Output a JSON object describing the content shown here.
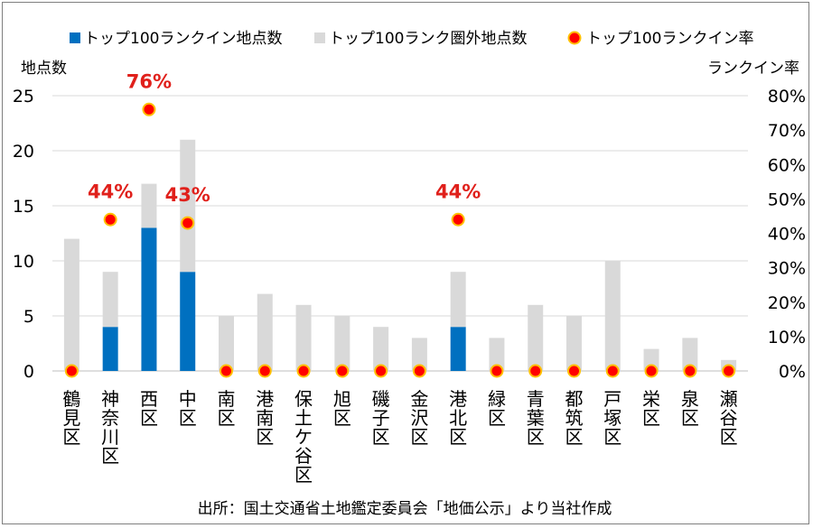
{
  "chart_data": {
    "type": "bar",
    "stacked": true,
    "categories": [
      "鶴見区",
      "神奈川区",
      "西区",
      "中区",
      "南区",
      "港南区",
      "保土ケ谷区",
      "旭区",
      "磯子区",
      "金沢区",
      "港北区",
      "緑区",
      "青葉区",
      "都筑区",
      "戸塚区",
      "栄区",
      "泉区",
      "瀬谷区"
    ],
    "series": [
      {
        "name": "トップ100ランクイン地点数",
        "color": "#0070C0",
        "axis": "left",
        "kind": "bar",
        "values": [
          0,
          4,
          13,
          9,
          0,
          0,
          0,
          0,
          0,
          0,
          4,
          0,
          0,
          0,
          0,
          0,
          0,
          0
        ]
      },
      {
        "name": "トップ100ランク圏外地点数",
        "color": "#D9D9D9",
        "axis": "left",
        "kind": "bar",
        "values": [
          12,
          5,
          4,
          12,
          5,
          7,
          6,
          5,
          4,
          3,
          5,
          3,
          6,
          5,
          10,
          2,
          3,
          1
        ]
      },
      {
        "name": "トップ100ランクイン率",
        "color": "#FF0000",
        "axis": "right",
        "kind": "point",
        "values": [
          0,
          44,
          76,
          43,
          0,
          0,
          0,
          0,
          0,
          0,
          44,
          0,
          0,
          0,
          0,
          0,
          0,
          0
        ]
      }
    ],
    "rate_labels": [
      "",
      "44%",
      "76%",
      "43%",
      "",
      "",
      "",
      "",
      "",
      "",
      "44%",
      "",
      "",
      "",
      "",
      "",
      "",
      ""
    ],
    "ylabel_left": "地点数",
    "ylabel_right": "ランクイン率",
    "ylim_left": [
      0,
      25
    ],
    "yticks_left": [
      "0",
      "5",
      "10",
      "15",
      "20",
      "25"
    ],
    "ylim_right": [
      0,
      80
    ],
    "yticks_right": [
      "0%",
      "10%",
      "20%",
      "30%",
      "40%",
      "50%",
      "60%",
      "70%",
      "80%"
    ],
    "source": "出所：国土交通省土地鑑定委員会「地価公示」より当社作成",
    "legend_position": "top"
  }
}
